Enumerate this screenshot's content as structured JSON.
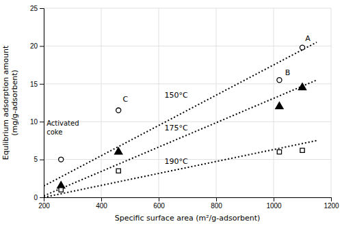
{
  "chart_data": {
    "type": "scatter",
    "xlabel": "Specific surface area (m²/g-adsorbent)",
    "ylabel": "Equlibrium adsorption amount\n(mg/g-adsorbent)",
    "xlim": [
      200,
      1200
    ],
    "ylim": [
      0,
      25
    ],
    "xticks": [
      200,
      400,
      600,
      800,
      1000,
      1200
    ],
    "yticks": [
      0,
      5,
      10,
      15,
      20,
      25
    ],
    "grid": true,
    "series": [
      {
        "type": "line",
        "line_style": "dotted",
        "color": "#000000",
        "x": [
          200,
          1150
        ],
        "values": [
          1.5,
          20.5
        ]
      },
      {
        "type": "line",
        "line_style": "dotted",
        "color": "#000000",
        "x": [
          200,
          1150
        ],
        "values": [
          0.2,
          15.5
        ]
      },
      {
        "type": "line",
        "line_style": "dotted",
        "color": "#000000",
        "x": [
          200,
          1150
        ],
        "values": [
          0.0,
          7.5
        ]
      },
      {
        "type": "scatter",
        "marker": "circle-open",
        "color": "#000000",
        "x": [
          260,
          460,
          1020,
          1100
        ],
        "values": [
          5.0,
          11.5,
          15.5,
          19.8
        ]
      },
      {
        "type": "scatter",
        "marker": "triangle",
        "color": "#000000",
        "x": [
          260,
          460,
          1020,
          1100
        ],
        "values": [
          1.5,
          6.0,
          12.0,
          14.5
        ]
      },
      {
        "type": "scatter",
        "marker": "square-open",
        "color": "#000000",
        "x": [
          260,
          460,
          1020,
          1100
        ],
        "values": [
          1.0,
          3.5,
          6.0,
          6.2
        ]
      }
    ],
    "annotations": [
      {
        "text": "150°C",
        "x": 620,
        "y": 13.5
      },
      {
        "text": "175°C",
        "x": 620,
        "y": 9.2
      },
      {
        "text": "190°C",
        "x": 620,
        "y": 4.8
      },
      {
        "text": "A",
        "x": 1110,
        "y": 21.0
      },
      {
        "text": "B",
        "x": 1040,
        "y": 16.5
      },
      {
        "text": "C",
        "x": 475,
        "y": 13.0
      },
      {
        "text": "Activated\ncoke",
        "x": 210,
        "y": 9.2
      }
    ]
  }
}
